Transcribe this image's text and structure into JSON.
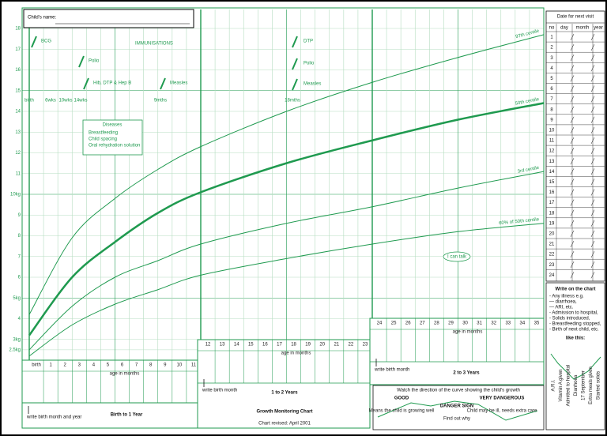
{
  "header": {
    "name_label": "Child's name:"
  },
  "immunisations": {
    "title": "IMMUNISATIONS",
    "vaccines": [
      "BCG",
      "Polio",
      "Hib, DTP & Hep B",
      "Measles"
    ],
    "ages": [
      "birth",
      "6wks",
      "10wks",
      "14wks",
      "9mths"
    ],
    "second_year_vaccines": [
      "DTP",
      "Polio",
      "Measles"
    ],
    "second_year_age": "18mths"
  },
  "diseases": {
    "title": "Diseases",
    "items": [
      "Breastfeeding",
      "Child spacing",
      "Oral rehydration solution"
    ]
  },
  "chart_data": {
    "type": "line",
    "title": "Growth Monitoring Chart",
    "x_label": "age in months",
    "x": [
      0,
      3,
      6,
      9,
      12,
      18,
      24,
      30,
      36
    ],
    "series": [
      {
        "name": "97th centile",
        "color": "#1f9a4f",
        "line_width": 1,
        "values": [
          4.2,
          7.9,
          9.8,
          11.2,
          12.3,
          14.0,
          15.4,
          16.6,
          17.7
        ]
      },
      {
        "name": "50th centile",
        "color": "#1f9a4f",
        "line_width": 2.5,
        "values": [
          3.2,
          6.0,
          7.7,
          9.1,
          10.1,
          11.5,
          12.6,
          13.6,
          14.4
        ]
      },
      {
        "name": "3rd centile",
        "color": "#1f9a4f",
        "line_width": 1,
        "values": [
          2.5,
          4.6,
          6.0,
          6.8,
          7.6,
          8.6,
          9.4,
          10.3,
          11.1
        ]
      },
      {
        "name": "60% of 50th centile",
        "color": "#1f9a4f",
        "line_width": 1,
        "values": [
          2.2,
          3.7,
          4.7,
          5.4,
          6.1,
          6.9,
          7.6,
          8.2,
          8.6
        ]
      }
    ],
    "xlim": [
      0,
      36
    ],
    "ylim": [
      2,
      18
    ],
    "xticks": [
      {
        "value": 0,
        "label": "birth"
      },
      1,
      2,
      3,
      4,
      5,
      6,
      7,
      8,
      9,
      10,
      11,
      12,
      13,
      14,
      15,
      16,
      17,
      18,
      19,
      20,
      21,
      22,
      23,
      24,
      25,
      26,
      27,
      28,
      29,
      30,
      31,
      32,
      33,
      34,
      35
    ],
    "yticks": [
      {
        "value": 2.5,
        "label": "2.5kg"
      },
      {
        "value": 3,
        "label": "3kg"
      },
      4,
      {
        "value": 5,
        "label": "5kg"
      },
      6,
      7,
      8,
      9,
      {
        "value": 10,
        "label": "10kg"
      },
      11,
      12,
      13,
      14,
      15,
      16,
      17,
      18
    ],
    "grid": true
  },
  "speech": "I can talk",
  "panels": [
    {
      "title": "Birth to 1 Year",
      "note": "write birth month and year"
    },
    {
      "title": "1 to 2 Years",
      "note": "write birth month"
    },
    {
      "title": "2 to 3 Years",
      "note": "write birth month"
    }
  ],
  "footer": "Chart revised: April 2001",
  "next_visit": {
    "title": "Date for next visit",
    "columns": [
      "no",
      "day",
      "month",
      "year"
    ],
    "rows": [
      1,
      2,
      3,
      4,
      5,
      6,
      7,
      8,
      9,
      10,
      11,
      12,
      13,
      14,
      15,
      16,
      17,
      18,
      19,
      20,
      21,
      22,
      23,
      24
    ]
  },
  "write_on_chart": {
    "title": "Write on the chart",
    "items": [
      "- Any illness e.g.",
      "— diarrhoea,",
      "— ARI, etc.",
      "- Admission to hospital,",
      "- Solids introduced,",
      "- Breastfeeding stopped,",
      "- Birth of next child, etc."
    ],
    "example_label": "like this:",
    "examples": [
      "A.R.I.",
      "Vitamin A given",
      "Admitted to hospital",
      "Diarrhoea",
      "17 September",
      "Extra meals given",
      "Started solids"
    ]
  },
  "growth_direction": {
    "title": "Watch the direction of the curve showing the child's growth",
    "items": [
      {
        "label": "GOOD",
        "text": "Means the child is growing well"
      },
      {
        "label": "DANGER SIGN",
        "text": "Find out why"
      },
      {
        "label": "VERY DANGEROUS",
        "text": "Child may be ill, needs extra care"
      }
    ]
  }
}
